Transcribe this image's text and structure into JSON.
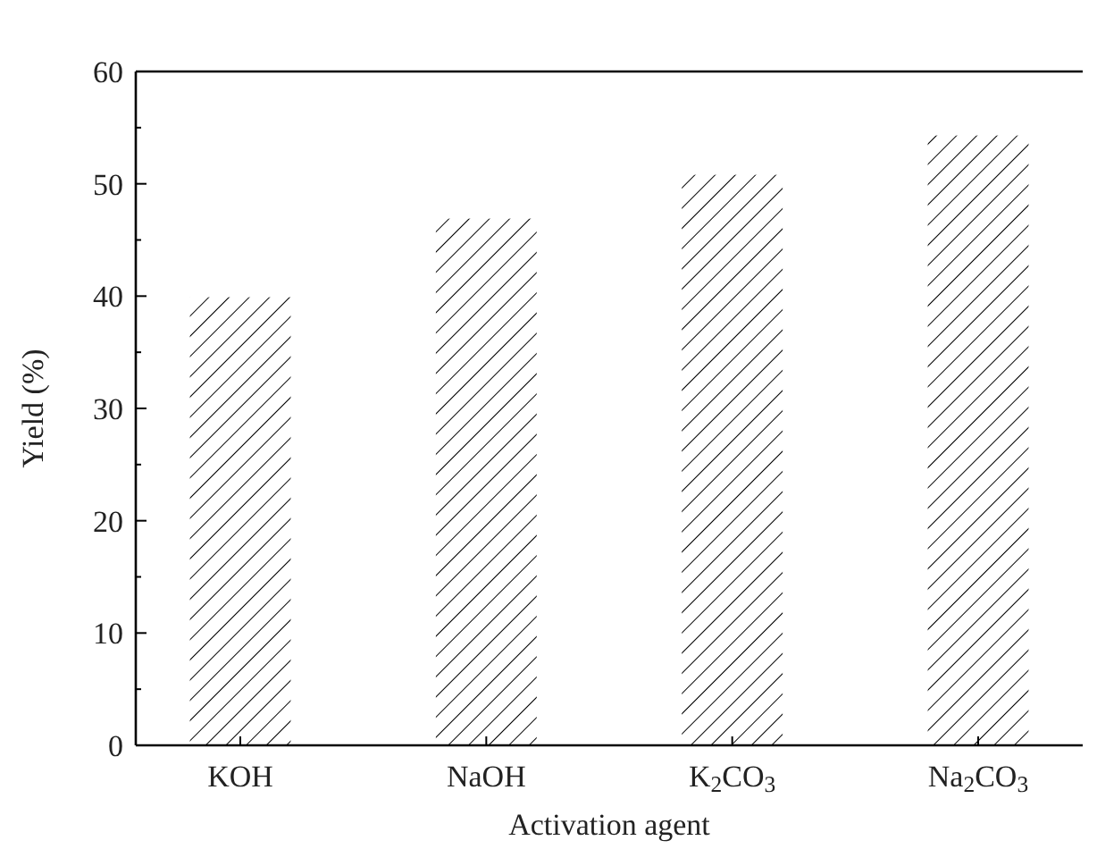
{
  "chart_data": {
    "type": "bar",
    "xlabel": "Activation agent",
    "ylabel": "Yield (%)",
    "categories": [
      "KOH",
      "NaOH",
      "K$_{2}$CO$_{3}$",
      "Na$_{2}$CO$_{3}$"
    ],
    "values": [
      39.9,
      46.9,
      50.8,
      54.3
    ],
    "color": "#000000",
    "ylim": [
      0,
      60
    ],
    "yticks": [
      0,
      {
        "value": 5,
        "label": null
      },
      10,
      {
        "value": 15,
        "label": null
      },
      20,
      {
        "value": 25,
        "label": null
      },
      30,
      {
        "value": 35,
        "label": null
      },
      40,
      {
        "value": 45,
        "label": null
      },
      50,
      {
        "value": 55,
        "label": null
      },
      60
    ],
    "grid": false
  }
}
